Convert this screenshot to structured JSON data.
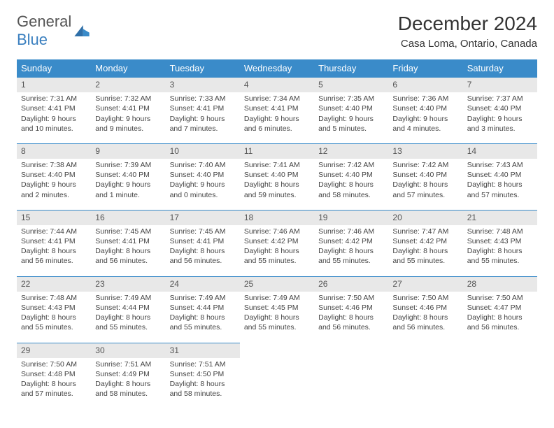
{
  "logo": {
    "part1": "General",
    "part2": "Blue"
  },
  "title": "December 2024",
  "location": "Casa Loma, Ontario, Canada",
  "colors": {
    "header_bg": "#3a8bc9",
    "header_text": "#ffffff",
    "daynum_bg": "#e8e8e8",
    "daynum_border": "#3a8bc9",
    "body_bg": "#ffffff",
    "text": "#444444",
    "logo_gray": "#666666",
    "logo_blue": "#3a7fbf"
  },
  "fonts": {
    "title_size_pt": 21,
    "location_size_pt": 11,
    "header_size_pt": 10,
    "cell_size_pt": 8
  },
  "day_headers": [
    "Sunday",
    "Monday",
    "Tuesday",
    "Wednesday",
    "Thursday",
    "Friday",
    "Saturday"
  ],
  "weeks": [
    [
      {
        "n": "1",
        "sr": "7:31 AM",
        "ss": "4:41 PM",
        "dl": "9 hours and 10 minutes."
      },
      {
        "n": "2",
        "sr": "7:32 AM",
        "ss": "4:41 PM",
        "dl": "9 hours and 9 minutes."
      },
      {
        "n": "3",
        "sr": "7:33 AM",
        "ss": "4:41 PM",
        "dl": "9 hours and 7 minutes."
      },
      {
        "n": "4",
        "sr": "7:34 AM",
        "ss": "4:41 PM",
        "dl": "9 hours and 6 minutes."
      },
      {
        "n": "5",
        "sr": "7:35 AM",
        "ss": "4:40 PM",
        "dl": "9 hours and 5 minutes."
      },
      {
        "n": "6",
        "sr": "7:36 AM",
        "ss": "4:40 PM",
        "dl": "9 hours and 4 minutes."
      },
      {
        "n": "7",
        "sr": "7:37 AM",
        "ss": "4:40 PM",
        "dl": "9 hours and 3 minutes."
      }
    ],
    [
      {
        "n": "8",
        "sr": "7:38 AM",
        "ss": "4:40 PM",
        "dl": "9 hours and 2 minutes."
      },
      {
        "n": "9",
        "sr": "7:39 AM",
        "ss": "4:40 PM",
        "dl": "9 hours and 1 minute."
      },
      {
        "n": "10",
        "sr": "7:40 AM",
        "ss": "4:40 PM",
        "dl": "9 hours and 0 minutes."
      },
      {
        "n": "11",
        "sr": "7:41 AM",
        "ss": "4:40 PM",
        "dl": "8 hours and 59 minutes."
      },
      {
        "n": "12",
        "sr": "7:42 AM",
        "ss": "4:40 PM",
        "dl": "8 hours and 58 minutes."
      },
      {
        "n": "13",
        "sr": "7:42 AM",
        "ss": "4:40 PM",
        "dl": "8 hours and 57 minutes."
      },
      {
        "n": "14",
        "sr": "7:43 AM",
        "ss": "4:40 PM",
        "dl": "8 hours and 57 minutes."
      }
    ],
    [
      {
        "n": "15",
        "sr": "7:44 AM",
        "ss": "4:41 PM",
        "dl": "8 hours and 56 minutes."
      },
      {
        "n": "16",
        "sr": "7:45 AM",
        "ss": "4:41 PM",
        "dl": "8 hours and 56 minutes."
      },
      {
        "n": "17",
        "sr": "7:45 AM",
        "ss": "4:41 PM",
        "dl": "8 hours and 56 minutes."
      },
      {
        "n": "18",
        "sr": "7:46 AM",
        "ss": "4:42 PM",
        "dl": "8 hours and 55 minutes."
      },
      {
        "n": "19",
        "sr": "7:46 AM",
        "ss": "4:42 PM",
        "dl": "8 hours and 55 minutes."
      },
      {
        "n": "20",
        "sr": "7:47 AM",
        "ss": "4:42 PM",
        "dl": "8 hours and 55 minutes."
      },
      {
        "n": "21",
        "sr": "7:48 AM",
        "ss": "4:43 PM",
        "dl": "8 hours and 55 minutes."
      }
    ],
    [
      {
        "n": "22",
        "sr": "7:48 AM",
        "ss": "4:43 PM",
        "dl": "8 hours and 55 minutes."
      },
      {
        "n": "23",
        "sr": "7:49 AM",
        "ss": "4:44 PM",
        "dl": "8 hours and 55 minutes."
      },
      {
        "n": "24",
        "sr": "7:49 AM",
        "ss": "4:44 PM",
        "dl": "8 hours and 55 minutes."
      },
      {
        "n": "25",
        "sr": "7:49 AM",
        "ss": "4:45 PM",
        "dl": "8 hours and 55 minutes."
      },
      {
        "n": "26",
        "sr": "7:50 AM",
        "ss": "4:46 PM",
        "dl": "8 hours and 56 minutes."
      },
      {
        "n": "27",
        "sr": "7:50 AM",
        "ss": "4:46 PM",
        "dl": "8 hours and 56 minutes."
      },
      {
        "n": "28",
        "sr": "7:50 AM",
        "ss": "4:47 PM",
        "dl": "8 hours and 56 minutes."
      }
    ],
    [
      {
        "n": "29",
        "sr": "7:50 AM",
        "ss": "4:48 PM",
        "dl": "8 hours and 57 minutes."
      },
      {
        "n": "30",
        "sr": "7:51 AM",
        "ss": "4:49 PM",
        "dl": "8 hours and 58 minutes."
      },
      {
        "n": "31",
        "sr": "7:51 AM",
        "ss": "4:50 PM",
        "dl": "8 hours and 58 minutes."
      },
      null,
      null,
      null,
      null
    ]
  ],
  "labels": {
    "sunrise": "Sunrise:",
    "sunset": "Sunset:",
    "daylight": "Daylight:"
  }
}
